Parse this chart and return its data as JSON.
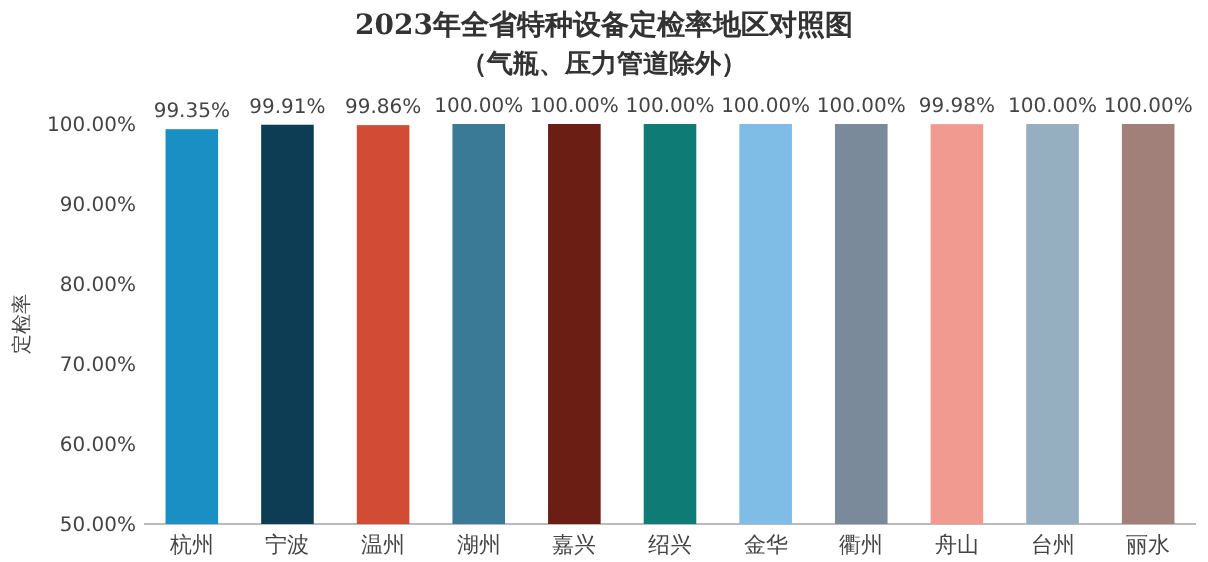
{
  "chart_data": {
    "type": "bar",
    "title": "2023年全省特种设备定检率地区对照图",
    "subtitle": "（气瓶、压力管道除外）",
    "ylabel": "定检率",
    "categories": [
      "杭州",
      "宁波",
      "温州",
      "湖州",
      "嘉兴",
      "绍兴",
      "金华",
      "衢州",
      "舟山",
      "台州",
      "丽水"
    ],
    "values": [
      99.35,
      99.91,
      99.86,
      100,
      100,
      100,
      100,
      100,
      99.98,
      100,
      100
    ],
    "value_labels": [
      "99.35%",
      "99.91%",
      "99.86%",
      "100.00%",
      "100.00%",
      "100.00%",
      "100.00%",
      "100.00%",
      "99.98%",
      "100.00%",
      "100.00%"
    ],
    "colors": [
      "#1a8fc4",
      "#0d3d55",
      "#d24b35",
      "#3b7a96",
      "#6b1e14",
      "#0e7c74",
      "#7fbde6",
      "#7a8a9a",
      "#f19a8f",
      "#96afc0",
      "#a08078"
    ],
    "ylim": [
      50,
      100
    ],
    "yticks": [
      {
        "value": 50,
        "label": "50.00%"
      },
      {
        "value": 60,
        "label": "60.00%"
      },
      {
        "value": 70,
        "label": "70.00%"
      },
      {
        "value": 80,
        "label": "80.00%"
      },
      {
        "value": 90,
        "label": "90.00%"
      },
      {
        "value": 100,
        "label": "100.00%"
      }
    ],
    "grid": false
  }
}
